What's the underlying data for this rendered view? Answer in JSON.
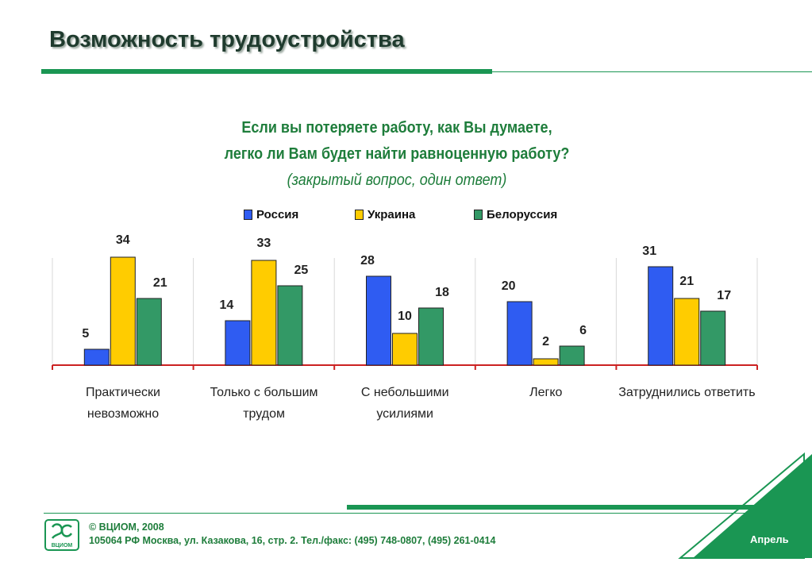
{
  "header": {
    "title": "Возможность трудоустройства"
  },
  "question": {
    "line1": "Если вы потеряете работу, как Вы думаете,",
    "line2": "легко ли Вам будет найти равноценную работу?",
    "note": "(закрытый вопрос, один ответ)"
  },
  "chart_data": {
    "type": "bar",
    "categories": [
      [
        "Практически",
        "невозможно"
      ],
      [
        "Только с большим",
        "трудом"
      ],
      [
        "С небольшими",
        "усилиями"
      ],
      [
        "Легко"
      ],
      [
        "Затруднились ответить"
      ]
    ],
    "series": [
      {
        "name": "Россия",
        "color": "#2f5cf2",
        "values": [
          5,
          14,
          28,
          20,
          31
        ]
      },
      {
        "name": "Украина",
        "color": "#ffcc00",
        "values": [
          34,
          33,
          10,
          2,
          21
        ]
      },
      {
        "name": "Белоруссия",
        "color": "#339966",
        "values": [
          21,
          25,
          18,
          6,
          17
        ]
      }
    ],
    "legend_position": "top",
    "grid": false,
    "ylim": [
      0,
      40
    ],
    "data_labels": true
  },
  "footer": {
    "copyright": "© ВЦИОМ, 2008",
    "address": "105064 РФ Москва, ул. Казакова, 16, стр. 2.  Тел./факс: (495) 748-0807, (495) 261-0414",
    "month": "Апрель",
    "logo_text": "ВЦИОМ"
  },
  "colors": {
    "accent": "#1a9653",
    "heading": "#1f3b2e",
    "question": "#1e7d3b",
    "axis": "#cc2222"
  }
}
